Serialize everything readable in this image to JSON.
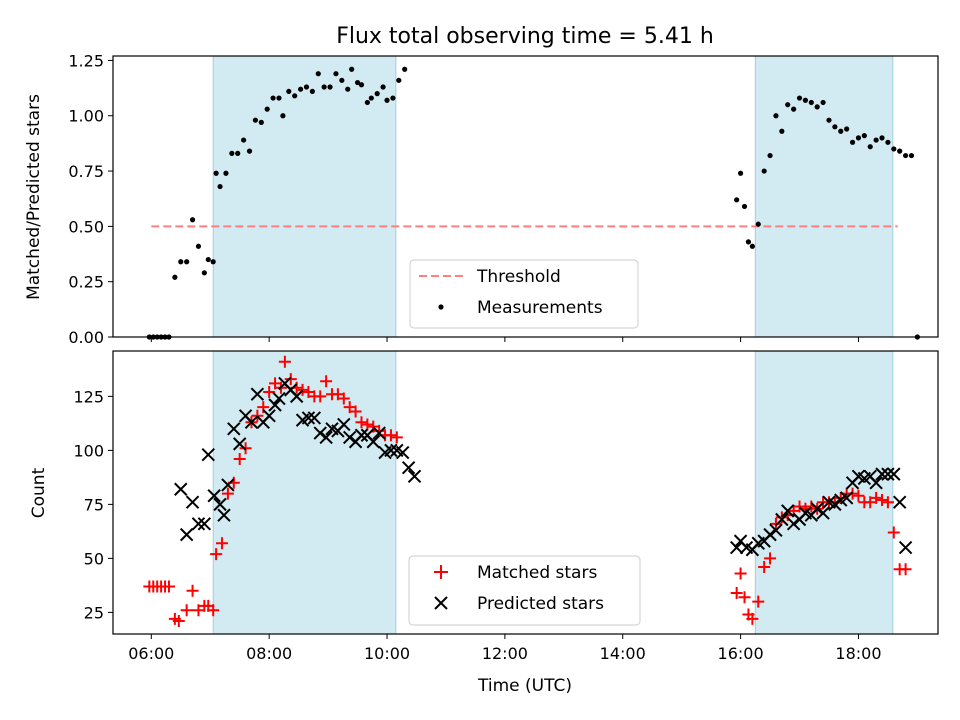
{
  "title": "Flux total observing time = 5.41 h",
  "xlabel": "Time (UTC)",
  "x_ticks": [
    "06:00",
    "08:00",
    "10:00",
    "12:00",
    "14:00",
    "16:00",
    "18:00"
  ],
  "colors": {
    "shade": "#add8e6",
    "threshold": "#ff7f7f",
    "measurements": "#000000",
    "matched": "#ff0000",
    "predicted": "#000000"
  },
  "chart_data": [
    {
      "type": "scatter",
      "ylabel": "Matched/Predicted stars",
      "x_range_hours": [
        5.35,
        19.35
      ],
      "ylim": [
        0,
        1.27
      ],
      "y_ticks": [
        "0.00",
        "0.25",
        "0.50",
        "0.75",
        "1.00",
        "1.25"
      ],
      "shaded_intervals": [
        [
          "07:03",
          "10:09"
        ],
        [
          "16:15",
          "18:35"
        ]
      ],
      "threshold": {
        "label": "Threshold",
        "value": 0.5,
        "x_start": "06:00",
        "x_end": "18:40"
      },
      "legend": {
        "entries": [
          "Threshold",
          "Measurements"
        ],
        "position": "lower center"
      },
      "series": [
        {
          "name": "Measurements",
          "points": [
            [
              "05:58",
              0.0
            ],
            [
              "06:02",
              0.0
            ],
            [
              "06:06",
              0.0
            ],
            [
              "06:10",
              0.0
            ],
            [
              "06:14",
              0.0
            ],
            [
              "06:18",
              0.0
            ],
            [
              "06:24",
              0.27
            ],
            [
              "06:30",
              0.34
            ],
            [
              "06:36",
              0.34
            ],
            [
              "06:42",
              0.53
            ],
            [
              "06:48",
              0.41
            ],
            [
              "06:54",
              0.29
            ],
            [
              "06:58",
              0.35
            ],
            [
              "07:03",
              0.34
            ],
            [
              "07:06",
              0.74
            ],
            [
              "07:10",
              0.68
            ],
            [
              "07:16",
              0.74
            ],
            [
              "07:22",
              0.83
            ],
            [
              "07:28",
              0.83
            ],
            [
              "07:34",
              0.89
            ],
            [
              "07:40",
              0.84
            ],
            [
              "07:46",
              0.98
            ],
            [
              "07:52",
              0.97
            ],
            [
              "07:58",
              1.03
            ],
            [
              "08:04",
              1.08
            ],
            [
              "08:10",
              1.08
            ],
            [
              "08:14",
              1.0
            ],
            [
              "08:20",
              1.11
            ],
            [
              "08:26",
              1.09
            ],
            [
              "08:32",
              1.12
            ],
            [
              "08:38",
              1.13
            ],
            [
              "08:44",
              1.11
            ],
            [
              "08:50",
              1.19
            ],
            [
              "08:56",
              1.13
            ],
            [
              "09:02",
              1.13
            ],
            [
              "09:08",
              1.19
            ],
            [
              "09:14",
              1.16
            ],
            [
              "09:20",
              1.12
            ],
            [
              "09:24",
              1.21
            ],
            [
              "09:30",
              1.15
            ],
            [
              "09:34",
              1.14
            ],
            [
              "09:40",
              1.06
            ],
            [
              "09:44",
              1.08
            ],
            [
              "09:50",
              1.1
            ],
            [
              "09:56",
              1.13
            ],
            [
              "10:00",
              1.07
            ],
            [
              "10:06",
              1.08
            ],
            [
              "10:12",
              1.16
            ],
            [
              "10:18",
              1.21
            ],
            [
              "15:56",
              0.62
            ],
            [
              "16:00",
              0.74
            ],
            [
              "16:04",
              0.59
            ],
            [
              "16:08",
              0.43
            ],
            [
              "16:12",
              0.41
            ],
            [
              "16:18",
              0.51
            ],
            [
              "16:24",
              0.75
            ],
            [
              "16:30",
              0.82
            ],
            [
              "16:36",
              1.0
            ],
            [
              "16:42",
              0.93
            ],
            [
              "16:48",
              1.05
            ],
            [
              "16:54",
              1.03
            ],
            [
              "17:00",
              1.08
            ],
            [
              "17:06",
              1.07
            ],
            [
              "17:12",
              1.06
            ],
            [
              "17:18",
              1.04
            ],
            [
              "17:24",
              1.06
            ],
            [
              "17:30",
              0.98
            ],
            [
              "17:36",
              0.95
            ],
            [
              "17:42",
              0.93
            ],
            [
              "17:48",
              0.94
            ],
            [
              "17:54",
              0.88
            ],
            [
              "18:00",
              0.9
            ],
            [
              "18:06",
              0.91
            ],
            [
              "18:12",
              0.86
            ],
            [
              "18:18",
              0.89
            ],
            [
              "18:24",
              0.9
            ],
            [
              "18:30",
              0.88
            ],
            [
              "18:36",
              0.85
            ],
            [
              "18:42",
              0.84
            ],
            [
              "18:48",
              0.82
            ],
            [
              "18:54",
              0.82
            ],
            [
              "19:00",
              0.0
            ]
          ]
        }
      ]
    },
    {
      "type": "scatter",
      "ylabel": "Count",
      "x_range_hours": [
        5.35,
        19.35
      ],
      "ylim": [
        15,
        146
      ],
      "y_ticks": [
        "25",
        "50",
        "75",
        "100",
        "125"
      ],
      "shaded_intervals": [
        [
          "07:03",
          "10:09"
        ],
        [
          "16:15",
          "18:35"
        ]
      ],
      "legend": {
        "entries": [
          "Matched stars",
          "Predicted stars"
        ],
        "position": "lower center"
      },
      "series": [
        {
          "name": "Matched stars",
          "marker": "+",
          "points": [
            [
              "05:58",
              37
            ],
            [
              "06:02",
              37
            ],
            [
              "06:06",
              37
            ],
            [
              "06:10",
              37
            ],
            [
              "06:14",
              37
            ],
            [
              "06:18",
              37
            ],
            [
              "06:24",
              22
            ],
            [
              "06:28",
              21
            ],
            [
              "06:36",
              26
            ],
            [
              "06:42",
              35
            ],
            [
              "06:48",
              26
            ],
            [
              "06:54",
              28
            ],
            [
              "06:58",
              28
            ],
            [
              "07:03",
              26
            ],
            [
              "07:06",
              52
            ],
            [
              "07:12",
              57
            ],
            [
              "07:18",
              80
            ],
            [
              "07:24",
              85
            ],
            [
              "07:30",
              96
            ],
            [
              "07:36",
              101
            ],
            [
              "07:42",
              113
            ],
            [
              "07:48",
              116
            ],
            [
              "07:54",
              120
            ],
            [
              "08:00",
              127
            ],
            [
              "08:06",
              131
            ],
            [
              "08:12",
              129
            ],
            [
              "08:16",
              141
            ],
            [
              "08:22",
              133
            ],
            [
              "08:28",
              129
            ],
            [
              "08:34",
              128
            ],
            [
              "08:40",
              127
            ],
            [
              "08:46",
              125
            ],
            [
              "08:52",
              125
            ],
            [
              "08:58",
              132
            ],
            [
              "09:04",
              126
            ],
            [
              "09:10",
              126
            ],
            [
              "09:16",
              124
            ],
            [
              "09:22",
              120
            ],
            [
              "09:28",
              118
            ],
            [
              "09:34",
              113
            ],
            [
              "09:40",
              112
            ],
            [
              "09:46",
              111
            ],
            [
              "09:52",
              109
            ],
            [
              "09:58",
              107
            ],
            [
              "10:04",
              107
            ],
            [
              "10:10",
              106
            ],
            [
              "15:56",
              34
            ],
            [
              "16:00",
              43
            ],
            [
              "16:04",
              32
            ],
            [
              "16:08",
              24
            ],
            [
              "16:12",
              22
            ],
            [
              "16:18",
              30
            ],
            [
              "16:24",
              46
            ],
            [
              "16:30",
              50
            ],
            [
              "16:36",
              66
            ],
            [
              "16:42",
              69
            ],
            [
              "16:48",
              70
            ],
            [
              "16:54",
              72
            ],
            [
              "17:00",
              74
            ],
            [
              "17:06",
              73
            ],
            [
              "17:12",
              74
            ],
            [
              "17:18",
              73
            ],
            [
              "17:24",
              76
            ],
            [
              "17:30",
              76
            ],
            [
              "17:36",
              76
            ],
            [
              "17:42",
              78
            ],
            [
              "17:48",
              80
            ],
            [
              "17:54",
              80
            ],
            [
              "18:00",
              79
            ],
            [
              "18:06",
              76
            ],
            [
              "18:12",
              76
            ],
            [
              "18:18",
              78
            ],
            [
              "18:24",
              77
            ],
            [
              "18:30",
              76
            ],
            [
              "18:36",
              62
            ],
            [
              "18:42",
              45
            ],
            [
              "18:48",
              45
            ]
          ]
        },
        {
          "name": "Predicted stars",
          "marker": "x",
          "points": [
            [
              "06:30",
              82
            ],
            [
              "06:36",
              61
            ],
            [
              "06:42",
              76
            ],
            [
              "06:48",
              66
            ],
            [
              "06:54",
              66
            ],
            [
              "06:58",
              98
            ],
            [
              "07:04",
              79
            ],
            [
              "07:10",
              75
            ],
            [
              "07:14",
              70
            ],
            [
              "07:18",
              84
            ],
            [
              "07:24",
              110
            ],
            [
              "07:30",
              103
            ],
            [
              "07:36",
              116
            ],
            [
              "07:42",
              113
            ],
            [
              "07:48",
              126
            ],
            [
              "07:54",
              113
            ],
            [
              "08:00",
              116
            ],
            [
              "08:06",
              121
            ],
            [
              "08:10",
              124
            ],
            [
              "08:16",
              131
            ],
            [
              "08:22",
              128
            ],
            [
              "08:28",
              125
            ],
            [
              "08:34",
              114
            ],
            [
              "08:40",
              115
            ],
            [
              "08:46",
              115
            ],
            [
              "08:52",
              108
            ],
            [
              "08:58",
              106
            ],
            [
              "09:04",
              110
            ],
            [
              "09:10",
              109
            ],
            [
              "09:16",
              112
            ],
            [
              "09:22",
              106
            ],
            [
              "09:28",
              104
            ],
            [
              "09:34",
              107
            ],
            [
              "09:40",
              107
            ],
            [
              "09:46",
              104
            ],
            [
              "09:52",
              108
            ],
            [
              "09:58",
              99
            ],
            [
              "10:04",
              100
            ],
            [
              "10:10",
              100
            ],
            [
              "10:16",
              99
            ],
            [
              "10:22",
              92
            ],
            [
              "10:28",
              88
            ],
            [
              "15:56",
              55
            ],
            [
              "16:00",
              58
            ],
            [
              "16:06",
              55
            ],
            [
              "16:12",
              54
            ],
            [
              "16:18",
              57
            ],
            [
              "16:24",
              58
            ],
            [
              "16:30",
              61
            ],
            [
              "16:36",
              63
            ],
            [
              "16:42",
              68
            ],
            [
              "16:48",
              72
            ],
            [
              "16:54",
              66
            ],
            [
              "17:00",
              68
            ],
            [
              "17:06",
              71
            ],
            [
              "17:12",
              70
            ],
            [
              "17:18",
              73
            ],
            [
              "17:24",
              71
            ],
            [
              "17:30",
              76
            ],
            [
              "17:36",
              75
            ],
            [
              "17:42",
              77
            ],
            [
              "17:48",
              78
            ],
            [
              "17:54",
              85
            ],
            [
              "18:00",
              88
            ],
            [
              "18:06",
              87
            ],
            [
              "18:12",
              88
            ],
            [
              "18:18",
              85
            ],
            [
              "18:24",
              89
            ],
            [
              "18:30",
              89
            ],
            [
              "18:36",
              89
            ],
            [
              "18:42",
              76
            ],
            [
              "18:48",
              55
            ]
          ]
        }
      ]
    }
  ]
}
